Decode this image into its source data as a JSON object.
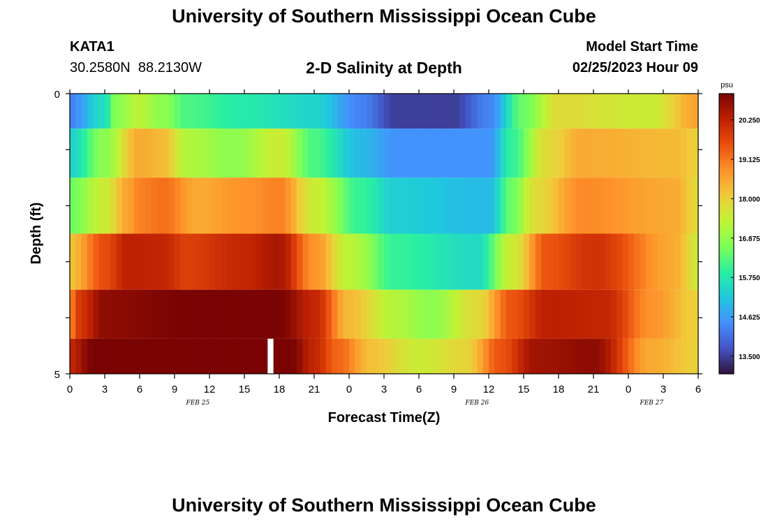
{
  "header": {
    "title_top": "University of Southern Mississippi Ocean Cube",
    "title_bottom": "University of Southern Mississippi Ocean Cube",
    "station_name": "KATA1",
    "station_coords": "30.2580N  88.2130W",
    "chart_title": "2-D Salinity at Depth",
    "model_start_label": "Model Start Time",
    "model_start_value": "02/25/2023 Hour 09"
  },
  "colors": {
    "scale": [
      "#30123b",
      "#4454c4",
      "#4490fe",
      "#1fc8de",
      "#29efa2",
      "#7dff56",
      "#c1f334",
      "#f1ca3a",
      "#fe922a",
      "#ea4f0d",
      "#be2102",
      "#7a0403"
    ],
    "missing": "#ffffff",
    "frame": "#000000"
  },
  "chart_data": {
    "type": "heatmap",
    "title": "2-D Salinity at Depth",
    "xlabel": "Forecast Time(Z)",
    "ylabel": "Depth (ft)",
    "x_tick_labels": [
      "0",
      "3",
      "6",
      "9",
      "12",
      "15",
      "18",
      "21",
      "0",
      "3",
      "6",
      "9",
      "12",
      "15",
      "18",
      "21",
      "0",
      "3",
      "6"
    ],
    "hours_total": 54,
    "date_labels": [
      {
        "text": "FEB 25",
        "hour": 11
      },
      {
        "text": "FEB 26",
        "hour": 35
      },
      {
        "text": "FEB 27",
        "hour": 50
      }
    ],
    "y_tick_labels": [
      {
        "value": 0,
        "text": "0"
      },
      {
        "value": 5,
        "text": "5"
      }
    ],
    "ylim": [
      0,
      5
    ],
    "depth_rows": [
      0.25,
      1.0,
      2.0,
      3.0,
      4.0,
      4.75
    ],
    "colorbar": {
      "unit": "psu",
      "min": 13.0,
      "max": 21.0,
      "tick_labels": [
        "13.500",
        "14.625",
        "15.750",
        "16.875",
        "18.000",
        "19.125",
        "20.250"
      ],
      "tick_values": [
        13.5,
        14.625,
        15.75,
        16.875,
        18.0,
        19.125,
        20.25
      ]
    },
    "gap": {
      "hour": 17,
      "row": 5
    },
    "row_profiles": [
      {
        "depth": 0.25,
        "keys": [
          [
            0,
            14.3
          ],
          [
            3,
            15.6
          ],
          [
            4,
            16.8
          ],
          [
            6,
            17.3
          ],
          [
            8,
            16.8
          ],
          [
            10,
            16.2
          ],
          [
            15,
            15.8
          ],
          [
            21,
            15.4
          ],
          [
            25,
            14.3
          ],
          [
            28,
            13.5
          ],
          [
            33,
            13.5
          ],
          [
            36,
            14.3
          ],
          [
            39,
            16.5
          ],
          [
            42,
            17.8
          ],
          [
            50,
            17.5
          ],
          [
            54,
            18.6
          ]
        ]
      },
      {
        "depth": 1.0,
        "keys": [
          [
            0,
            15.4
          ],
          [
            3,
            16.8
          ],
          [
            6,
            18.5
          ],
          [
            8,
            18.3
          ],
          [
            10,
            17.2
          ],
          [
            14,
            16.8
          ],
          [
            18,
            17.5
          ],
          [
            21,
            16.2
          ],
          [
            25,
            15.0
          ],
          [
            28,
            14.5
          ],
          [
            36,
            14.5
          ],
          [
            38,
            16.0
          ],
          [
            41,
            17.8
          ],
          [
            44,
            18.5
          ],
          [
            52,
            18.3
          ],
          [
            54,
            18.0
          ]
        ]
      },
      {
        "depth": 2.0,
        "keys": [
          [
            0,
            16.5
          ],
          [
            3,
            17.5
          ],
          [
            5,
            18.6
          ],
          [
            6,
            19.0
          ],
          [
            8,
            19.2
          ],
          [
            11,
            18.5
          ],
          [
            15,
            18.8
          ],
          [
            18,
            19.0
          ],
          [
            21,
            17.5
          ],
          [
            25,
            16.0
          ],
          [
            28,
            15.3
          ],
          [
            36,
            15.0
          ],
          [
            38,
            16.5
          ],
          [
            40,
            17.8
          ],
          [
            44,
            18.9
          ],
          [
            52,
            18.5
          ],
          [
            54,
            17.8
          ]
        ]
      },
      {
        "depth": 3.0,
        "keys": [
          [
            0,
            18.2
          ],
          [
            3,
            19.6
          ],
          [
            5,
            20.3
          ],
          [
            8,
            20.2
          ],
          [
            10,
            19.8
          ],
          [
            15,
            20.2
          ],
          [
            18,
            20.5
          ],
          [
            21,
            18.8
          ],
          [
            24,
            17.3
          ],
          [
            28,
            16.0
          ],
          [
            35,
            15.5
          ],
          [
            38,
            17.5
          ],
          [
            41,
            19.5
          ],
          [
            45,
            20.0
          ],
          [
            52,
            18.5
          ],
          [
            54,
            17.5
          ]
        ]
      },
      {
        "depth": 4.0,
        "keys": [
          [
            0,
            19.0
          ],
          [
            1,
            20.0
          ],
          [
            3,
            20.8
          ],
          [
            10,
            21.0
          ],
          [
            18,
            21.0
          ],
          [
            21,
            20.2
          ],
          [
            24,
            18.3
          ],
          [
            28,
            17.2
          ],
          [
            31,
            16.8
          ],
          [
            35,
            17.8
          ],
          [
            38,
            19.5
          ],
          [
            41,
            20.3
          ],
          [
            46,
            20.2
          ],
          [
            50,
            18.8
          ],
          [
            54,
            18.0
          ]
        ]
      },
      {
        "depth": 4.75,
        "keys": [
          [
            0,
            20.2
          ],
          [
            2,
            21.0
          ],
          [
            5,
            21.4
          ],
          [
            12,
            21.4
          ],
          [
            17,
            21.5
          ],
          [
            19,
            21.0
          ],
          [
            21,
            20.2
          ],
          [
            23,
            19.3
          ],
          [
            26,
            18.2
          ],
          [
            30,
            17.5
          ],
          [
            34,
            17.9
          ],
          [
            37,
            19.5
          ],
          [
            40,
            20.6
          ],
          [
            45,
            20.8
          ],
          [
            50,
            18.5
          ],
          [
            54,
            18.0
          ]
        ]
      }
    ]
  }
}
